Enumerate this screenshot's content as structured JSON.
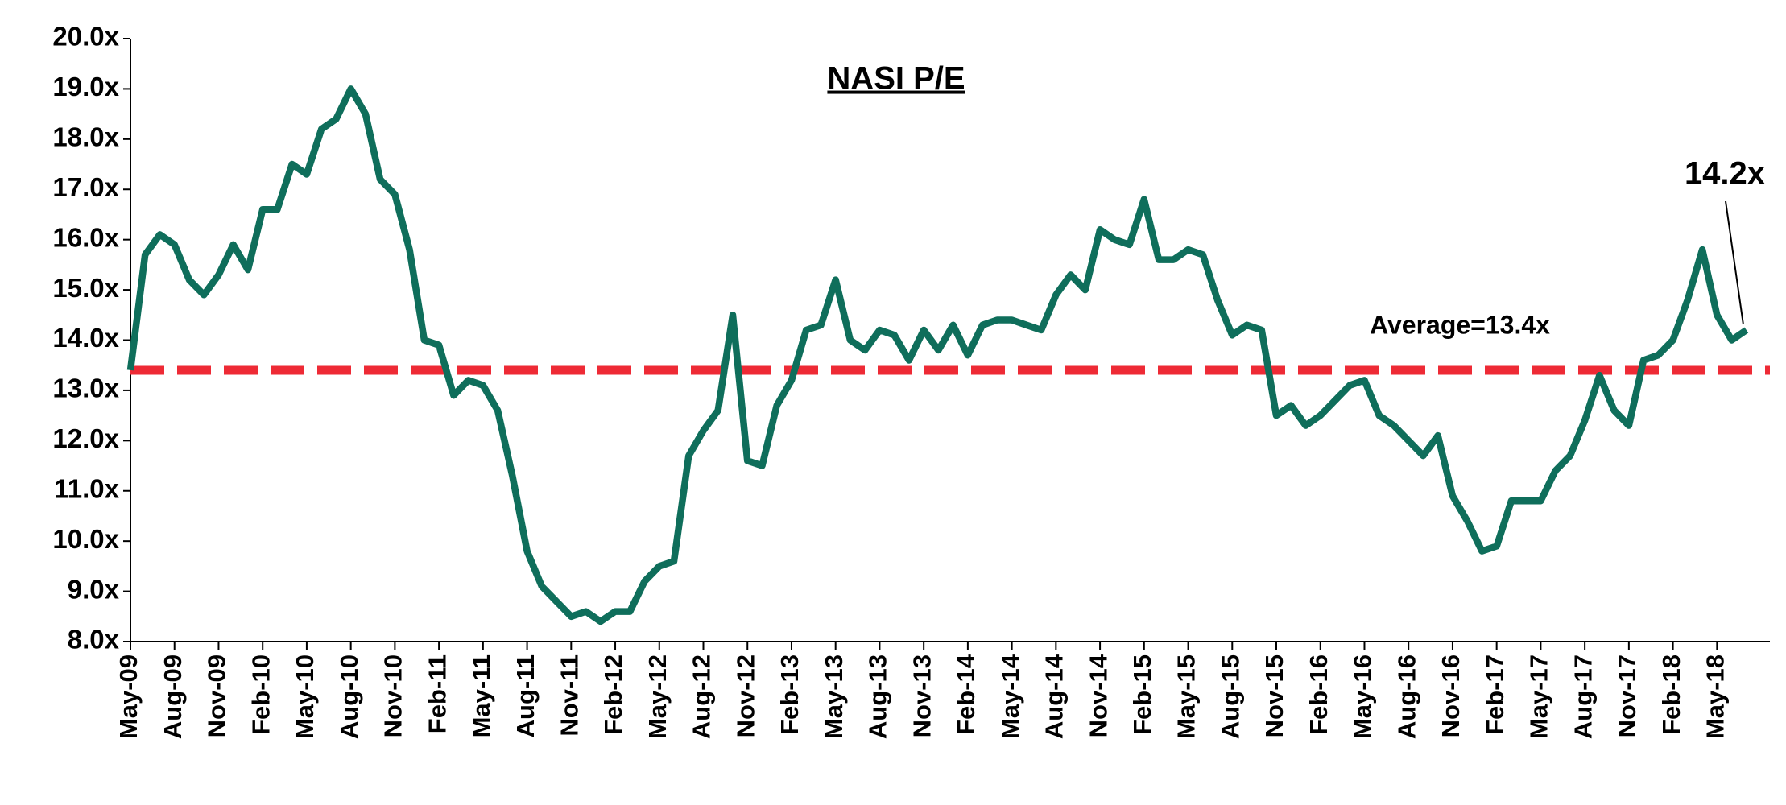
{
  "chart_data": {
    "type": "line",
    "title": "NASI P/E",
    "categories": [
      "May-09",
      null,
      null,
      "Aug-09",
      null,
      null,
      "Nov-09",
      null,
      null,
      "Feb-10",
      null,
      null,
      "May-10",
      null,
      null,
      "Aug-10",
      null,
      null,
      "Nov-10",
      null,
      null,
      "Feb-11",
      null,
      null,
      "May-11",
      null,
      null,
      "Aug-11",
      null,
      null,
      "Nov-11",
      null,
      null,
      "Feb-12",
      null,
      null,
      "May-12",
      null,
      null,
      "Aug-12",
      null,
      null,
      "Nov-12",
      null,
      null,
      "Feb-13",
      null,
      null,
      "May-13",
      null,
      null,
      "Aug-13",
      null,
      null,
      "Nov-13",
      null,
      null,
      "Feb-14",
      null,
      null,
      "May-14",
      null,
      null,
      "Aug-14",
      null,
      null,
      "Nov-14",
      null,
      null,
      "Feb-15",
      null,
      null,
      "May-15",
      null,
      null,
      "Aug-15",
      null,
      null,
      "Nov-15",
      null,
      null,
      "Feb-16",
      null,
      null,
      "May-16",
      null,
      null,
      "Aug-16",
      null,
      null,
      "Nov-16",
      null,
      null,
      "Feb-17",
      null,
      null,
      "May-17",
      null,
      null,
      "Aug-17",
      null,
      null,
      "Nov-17",
      null,
      null,
      "Feb-18",
      null,
      null,
      "May-18",
      null,
      null
    ],
    "series": [
      {
        "name": "NASI P/E",
        "color": "#0f6e5b",
        "values": [
          13.4,
          15.7,
          16.1,
          15.9,
          15.2,
          14.9,
          15.3,
          15.9,
          15.4,
          16.6,
          16.6,
          17.5,
          17.3,
          18.2,
          18.4,
          19.0,
          18.5,
          17.2,
          16.9,
          15.8,
          14.0,
          13.9,
          12.9,
          13.2,
          13.1,
          12.6,
          11.3,
          9.8,
          9.1,
          8.8,
          8.5,
          8.6,
          8.4,
          8.6,
          8.6,
          9.2,
          9.5,
          9.6,
          11.7,
          12.2,
          12.6,
          14.5,
          11.6,
          11.5,
          12.7,
          13.2,
          14.2,
          14.3,
          15.2,
          14.0,
          13.8,
          14.2,
          14.1,
          13.6,
          14.2,
          13.8,
          14.3,
          13.7,
          14.3,
          14.4,
          14.4,
          14.3,
          14.2,
          14.9,
          15.3,
          15.0,
          16.2,
          16.0,
          15.9,
          16.8,
          15.6,
          15.6,
          15.8,
          15.7,
          14.8,
          14.1,
          14.3,
          14.2,
          12.5,
          12.7,
          12.3,
          12.5,
          12.8,
          13.1,
          13.2,
          12.5,
          12.3,
          12.0,
          11.7,
          12.1,
          10.9,
          10.4,
          9.8,
          9.9,
          10.8,
          10.8,
          10.8,
          11.4,
          11.7,
          12.4,
          13.3,
          12.6,
          12.3,
          13.6,
          13.7,
          14.0,
          14.8,
          15.8,
          14.5,
          14.0,
          14.2
        ]
      }
    ],
    "average": {
      "value": 13.4,
      "label": "Average=13.4x",
      "color": "#ee2a35"
    },
    "annotations": [
      {
        "text": "14.2x"
      }
    ],
    "ylim": [
      8,
      20
    ],
    "yticks": [
      {
        "value": 8,
        "label": "8.0x"
      },
      {
        "value": 9,
        "label": "9.0x"
      },
      {
        "value": 10,
        "label": "10.0x"
      },
      {
        "value": 11,
        "label": "11.0x"
      },
      {
        "value": 12,
        "label": "12.0x"
      },
      {
        "value": 13,
        "label": "13.0x"
      },
      {
        "value": 14,
        "label": "14.0x"
      },
      {
        "value": 15,
        "label": "15.0x"
      },
      {
        "value": 16,
        "label": "16.0x"
      },
      {
        "value": 17,
        "label": "17.0x"
      },
      {
        "value": 18,
        "label": "18.0x"
      },
      {
        "value": 19,
        "label": "19.0x"
      },
      {
        "value": 20,
        "label": "20.0x"
      }
    ],
    "grid": false
  }
}
